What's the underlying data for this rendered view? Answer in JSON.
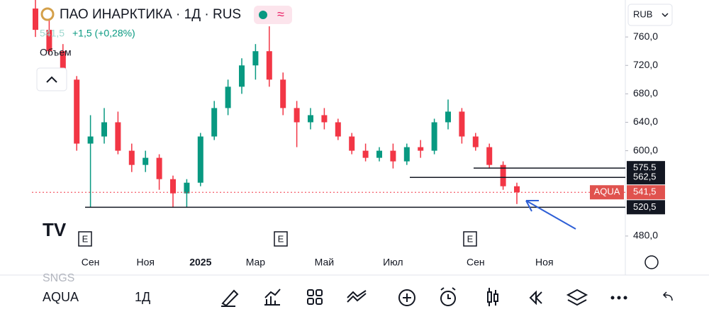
{
  "header": {
    "title": "ПАО ИНАРКТИКА · 1Д · RUS",
    "price": "541,5",
    "change": "+1,5 (+0,28%)",
    "volume": "Объем",
    "currency": "RUB"
  },
  "chart_data": {
    "type": "candlestick",
    "categories": [
      null,
      null,
      null,
      null,
      "Сен",
      null,
      null,
      null,
      "Ноя",
      null,
      null,
      null,
      "2025",
      null,
      null,
      null,
      "Мар",
      null,
      null,
      null,
      null,
      "Май",
      null,
      null,
      null,
      null,
      "Июл",
      null,
      null,
      null,
      null,
      null,
      "Сен",
      null,
      null,
      null,
      null,
      "Ноя"
    ],
    "open": [
      800,
      770,
      740,
      700,
      610,
      620,
      640,
      600,
      580,
      590,
      560,
      540,
      555,
      620,
      660,
      690,
      720,
      740,
      700,
      660,
      640,
      650,
      640,
      620,
      600,
      590,
      600,
      585,
      605,
      600,
      640,
      655,
      620,
      605,
      580,
      550,
      null,
      null
    ],
    "high": [
      815,
      790,
      750,
      705,
      650,
      660,
      655,
      610,
      600,
      595,
      565,
      560,
      625,
      670,
      700,
      730,
      750,
      775,
      710,
      670,
      660,
      660,
      645,
      625,
      610,
      605,
      610,
      610,
      615,
      645,
      672,
      660,
      625,
      610,
      585,
      555,
      null,
      null
    ],
    "low": [
      760,
      735,
      695,
      600,
      520,
      610,
      595,
      570,
      570,
      545,
      520,
      520,
      550,
      615,
      650,
      680,
      700,
      690,
      650,
      605,
      630,
      630,
      615,
      595,
      585,
      585,
      575,
      580,
      590,
      595,
      630,
      610,
      600,
      575,
      545,
      525,
      null,
      null
    ],
    "close": [
      770,
      740,
      700,
      610,
      620,
      640,
      600,
      580,
      590,
      560,
      540,
      555,
      620,
      660,
      690,
      720,
      740,
      700,
      660,
      640,
      650,
      640,
      620,
      600,
      590,
      600,
      585,
      605,
      600,
      640,
      655,
      620,
      605,
      580,
      550,
      541.5,
      null,
      null
    ],
    "up_color": "#089981",
    "down_color": "#f23645",
    "ylim": [
      458,
      812
    ],
    "yticks": [
      {
        "value": 480,
        "label": "480,0"
      },
      {
        "value": 600,
        "label": "600,0"
      },
      {
        "value": 640,
        "label": "640,0"
      },
      {
        "value": 680,
        "label": "680,0"
      },
      {
        "value": 720,
        "label": "720,0"
      },
      {
        "value": 760,
        "label": "760,0"
      }
    ],
    "levels": [
      {
        "value": 575.5,
        "label": "575,5"
      },
      {
        "value": 562.5,
        "label": "562,5"
      },
      {
        "value": 520.5,
        "label": "520,5"
      }
    ],
    "last": {
      "name": "AQUA",
      "value": 541.5,
      "label": "541,5"
    },
    "event_flag": "E"
  },
  "toolbar": {
    "symbols": [
      "SNGS",
      "AQUA"
    ],
    "interval": "1Д"
  }
}
